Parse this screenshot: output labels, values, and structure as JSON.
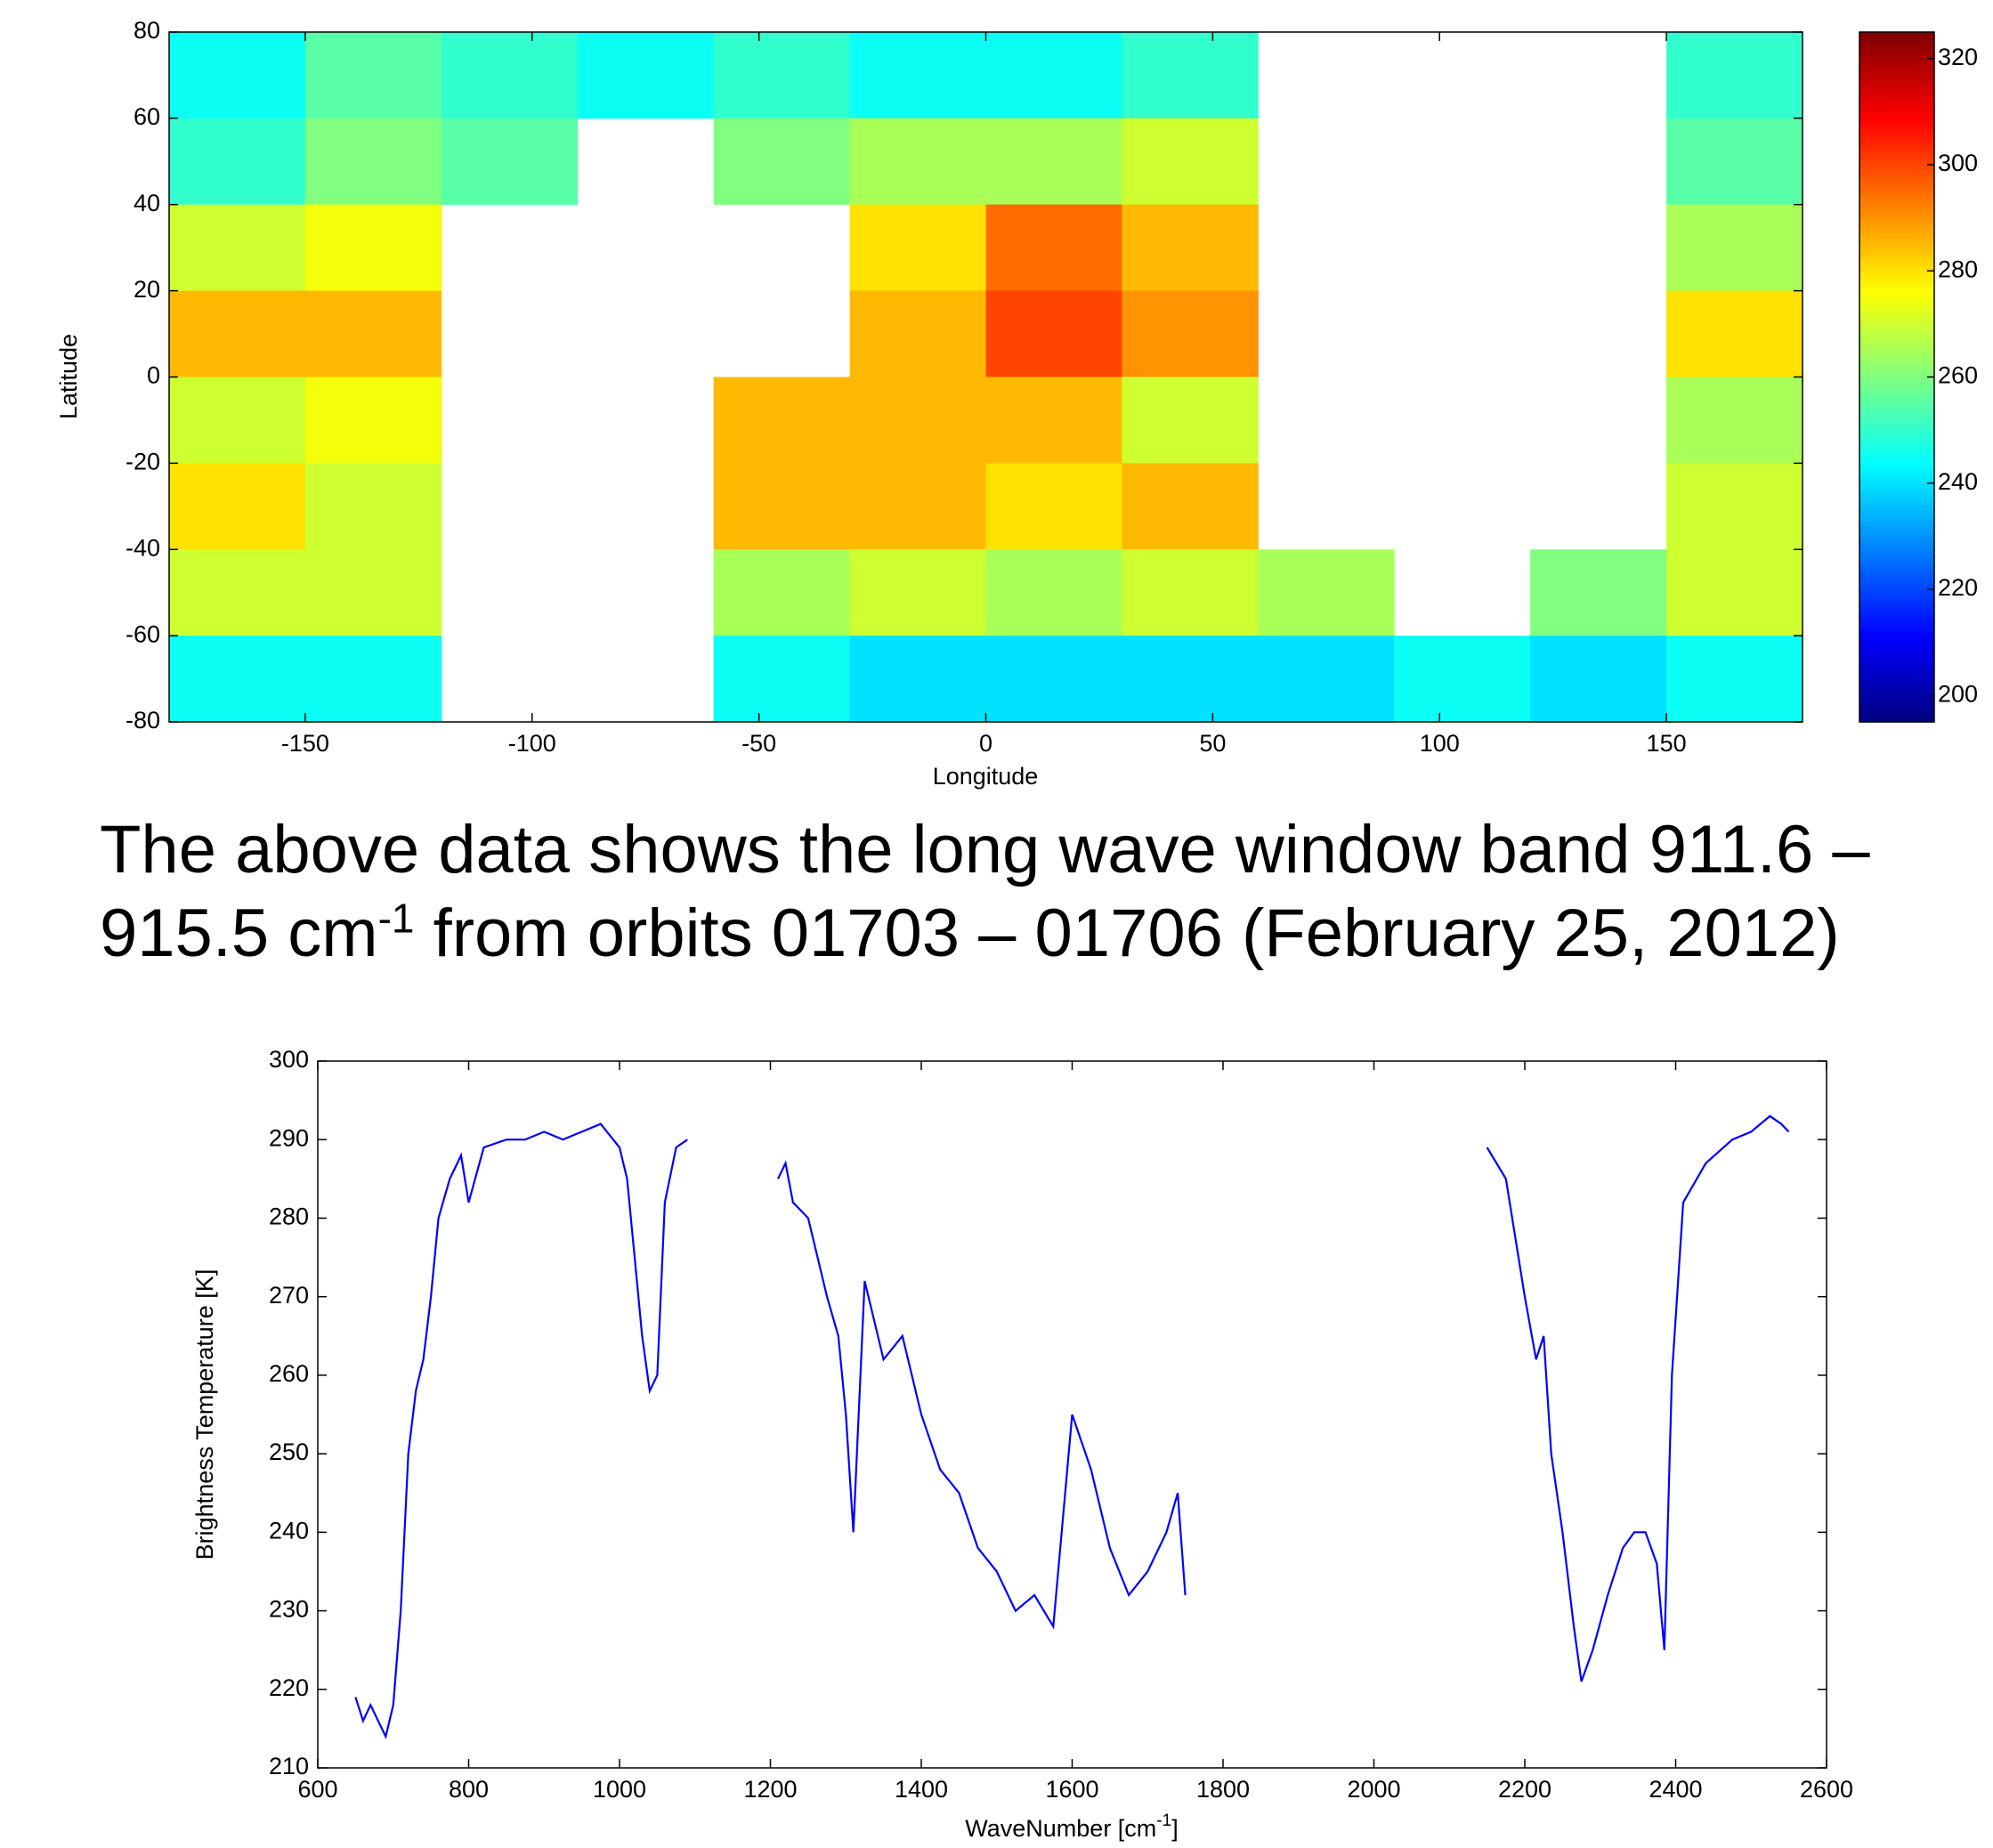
{
  "chart_data": [
    {
      "type": "heatmap",
      "x_label": "Longitude",
      "y_label": "Latitude",
      "x": [
        -165,
        -135,
        -105,
        -75,
        -45,
        -15,
        15,
        45,
        75,
        105,
        135,
        165
      ],
      "y": [
        70,
        50,
        30,
        10,
        -10,
        -30,
        -50,
        -70
      ],
      "z": [
        [
          245,
          255,
          250,
          245,
          250,
          245,
          245,
          250,
          null,
          null,
          null,
          250
        ],
        [
          250,
          260,
          255,
          null,
          260,
          265,
          265,
          270,
          null,
          null,
          null,
          255
        ],
        [
          270,
          275,
          null,
          null,
          null,
          280,
          295,
          285,
          null,
          null,
          null,
          265
        ],
        [
          285,
          285,
          null,
          null,
          null,
          285,
          300,
          290,
          null,
          null,
          null,
          280
        ],
        [
          270,
          275,
          null,
          null,
          285,
          285,
          285,
          270,
          null,
          null,
          null,
          265
        ],
        [
          280,
          270,
          null,
          null,
          285,
          285,
          280,
          285,
          null,
          null,
          null,
          270
        ],
        [
          270,
          270,
          null,
          null,
          265,
          270,
          265,
          270,
          265,
          null,
          260,
          270
        ],
        [
          245,
          245,
          null,
          null,
          245,
          240,
          240,
          240,
          240,
          245,
          240,
          245
        ]
      ],
      "xlim": [
        -180,
        180
      ],
      "xticks": [
        -150,
        -100,
        -50,
        0,
        50,
        100,
        150
      ],
      "ylim": [
        -80,
        80
      ],
      "yticks": [
        -80,
        -60,
        -40,
        -20,
        0,
        20,
        40,
        60,
        80
      ],
      "colormap": "jet",
      "clim": [
        195,
        325
      ],
      "cticks": [
        200,
        220,
        240,
        260,
        280,
        300,
        320
      ]
    },
    {
      "type": "line",
      "x_label_parts": [
        "WaveNumber [cm",
        "-1",
        "]"
      ],
      "y_label": "Brightness Temperature [K]",
      "color": "#0000ff",
      "x": [
        650,
        660,
        670,
        680,
        690,
        700,
        710,
        720,
        730,
        740,
        750,
        760,
        775,
        790,
        800,
        820,
        850,
        875,
        900,
        925,
        950,
        975,
        1000,
        1010,
        1020,
        1030,
        1040,
        1050,
        1060,
        1075,
        1090,
        1100,
        1210,
        1220,
        1230,
        1250,
        1275,
        1290,
        1300,
        1310,
        1325,
        1350,
        1375,
        1400,
        1425,
        1450,
        1475,
        1500,
        1525,
        1550,
        1575,
        1600,
        1625,
        1650,
        1675,
        1700,
        1725,
        1740,
        1750,
        1760,
        2150,
        2175,
        2200,
        2215,
        2225,
        2235,
        2250,
        2265,
        2275,
        2290,
        2310,
        2330,
        2345,
        2360,
        2375,
        2385,
        2395,
        2410,
        2440,
        2475,
        2500,
        2525,
        2540,
        2550
      ],
      "values": [
        219,
        216,
        218,
        216,
        214,
        218,
        230,
        250,
        258,
        262,
        270,
        280,
        285,
        288,
        282,
        289,
        290,
        290,
        291,
        290,
        291,
        292,
        289,
        285,
        275,
        265,
        258,
        260,
        282,
        289,
        290,
        null,
        285,
        287,
        282,
        280,
        270,
        265,
        255,
        240,
        272,
        262,
        265,
        255,
        248,
        245,
        238,
        235,
        230,
        232,
        228,
        255,
        248,
        238,
        232,
        235,
        240,
        245,
        232,
        null,
        289,
        285,
        270,
        262,
        265,
        250,
        240,
        228,
        221,
        225,
        232,
        238,
        240,
        240,
        236,
        225,
        260,
        282,
        287,
        290,
        291,
        293,
        292,
        291
      ],
      "xlim": [
        600,
        2600
      ],
      "xticks": [
        600,
        800,
        1000,
        1200,
        1400,
        1600,
        1800,
        2000,
        2200,
        2400,
        2600
      ],
      "ylim": [
        210,
        300
      ],
      "yticks": [
        210,
        220,
        230,
        240,
        250,
        260,
        270,
        280,
        290,
        300
      ]
    }
  ],
  "caption": {
    "line1": "The above data shows the long wave window band 911.6 –",
    "line2_start": "915.5 cm",
    "line2_sup": "-1",
    "line2_end": " from orbits 01703 – 01706 (February 25, 2012)"
  }
}
